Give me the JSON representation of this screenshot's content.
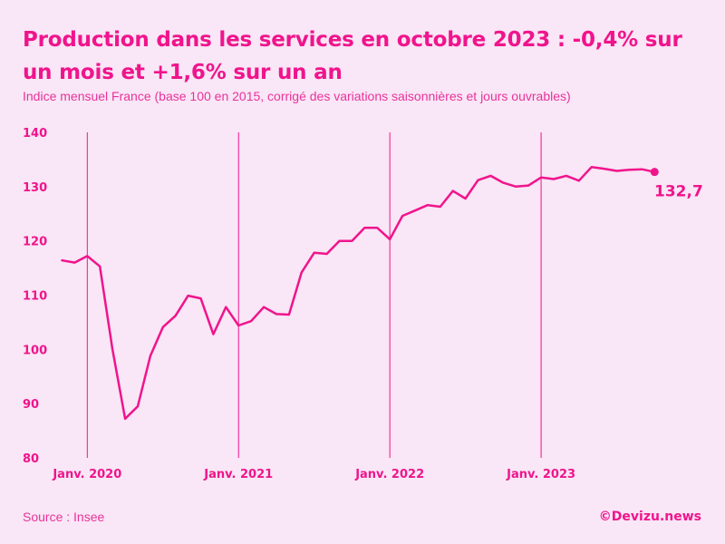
{
  "chart_data": {
    "type": "line",
    "title": "Production dans les services en octobre 2023 : -0,4% sur un mois et +1,6% sur un an",
    "subtitle": "Indice mensuel France (base 100 en 2015, corrigé des variations saisonnières et jours ouvrables)",
    "xlabel": "",
    "ylabel": "",
    "ylim": [
      80,
      140
    ],
    "yticks": [
      80,
      90,
      100,
      110,
      120,
      130,
      140
    ],
    "x_start": "2019-11",
    "x_tick_labels": [
      {
        "label": "Janv. 2020",
        "index": 2
      },
      {
        "label": "Janv. 2021",
        "index": 14
      },
      {
        "label": "Janv. 2022",
        "index": 26
      },
      {
        "label": "Janv. 2023",
        "index": 38
      }
    ],
    "grid": "vertical lines at January",
    "series": [
      {
        "name": "Production dans les services",
        "color": "#f0148c",
        "values": [
          116.4,
          116.0,
          117.2,
          115.3,
          100.0,
          87.2,
          89.5,
          98.8,
          104.1,
          106.2,
          109.9,
          109.4,
          102.8,
          107.8,
          104.4,
          105.2,
          107.8,
          106.5,
          106.4,
          114.2,
          117.8,
          117.6,
          120.0,
          120.0,
          122.4,
          122.4,
          120.3,
          124.6,
          125.6,
          126.6,
          126.3,
          129.2,
          127.8,
          131.2,
          132.0,
          130.7,
          130.0,
          130.2,
          131.7,
          131.4,
          132.0,
          131.1,
          133.6,
          133.3,
          132.9,
          133.1,
          133.2,
          132.7
        ]
      }
    ],
    "annotations": [
      {
        "text": "132,7",
        "target": "last point"
      }
    ]
  },
  "footer": {
    "source": "Source : Insee",
    "credit": "©Devizu.news"
  }
}
